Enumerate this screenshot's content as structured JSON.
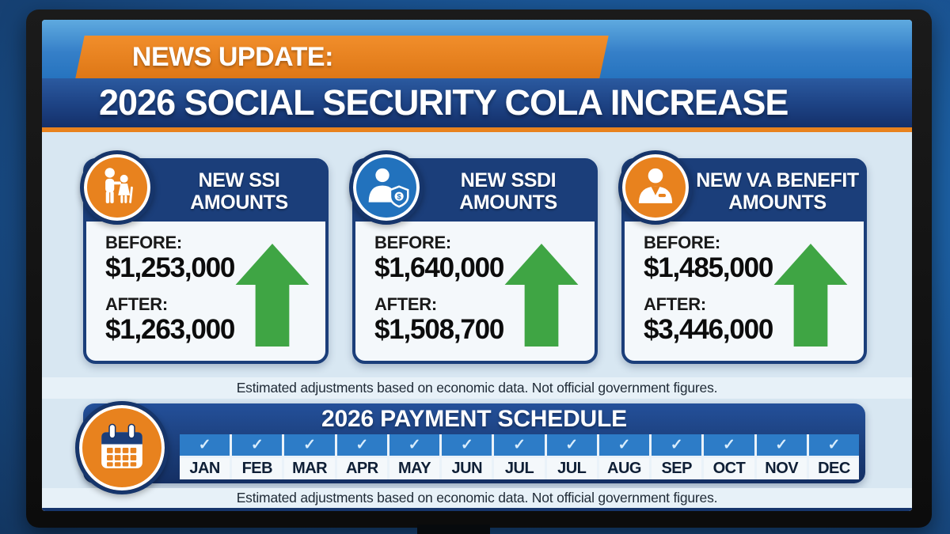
{
  "header": {
    "kicker": "NEWS UPDATE:",
    "title": "2026 SOCIAL SECURITY COLA INCREASE"
  },
  "cards": [
    {
      "id": "ssi",
      "icon": "elderly-couple-icon",
      "icon_bg": "#E8821E",
      "title_line1": "NEW SSI",
      "title_line2": "AMOUNTS",
      "before_label": "BEFORE:",
      "before_value": "$1,253,000",
      "after_label": "AFTER:",
      "after_value": "$1,263,000"
    },
    {
      "id": "ssdi",
      "icon": "person-shield-dollar-icon",
      "icon_bg": "#2272BD",
      "title_line1": "NEW SSDI",
      "title_line2": "AMOUNTS",
      "before_label": "BEFORE:",
      "before_value": "$1,640,000",
      "after_label": "AFTER:",
      "after_value": "$1,508,700"
    },
    {
      "id": "va",
      "icon": "veteran-person-icon",
      "icon_bg": "#E8821E",
      "title_line1": "NEW VA BENEFIT",
      "title_line2": "AMOUNTS",
      "before_label": "BEFORE:",
      "before_value": "$1,485,000",
      "after_label": "AFTER:",
      "after_value": "$3,446,000"
    }
  ],
  "disclaimers": {
    "top": "Estimated adjustments based on economic data. Not official government figures.",
    "bottom": "Estimated adjustments based on economic data. Not official government figures."
  },
  "schedule": {
    "title": "2026 PAYMENT SCHEDULE",
    "check_glyph": "✓",
    "months": [
      "JAN",
      "FEB",
      "MAR",
      "APR",
      "MAY",
      "JUN",
      "JUL",
      "JUL",
      "AUG",
      "SEP",
      "OCT",
      "NOV",
      "DEC"
    ]
  },
  "colors": {
    "accent_orange": "#E8821E",
    "navy": "#1B3E7A",
    "band_blue": "#2D7CC7",
    "screen_bg": "#D8E7F2",
    "arrow_green": "#3FA544",
    "ssdi_circle_blue": "#2272BD"
  }
}
